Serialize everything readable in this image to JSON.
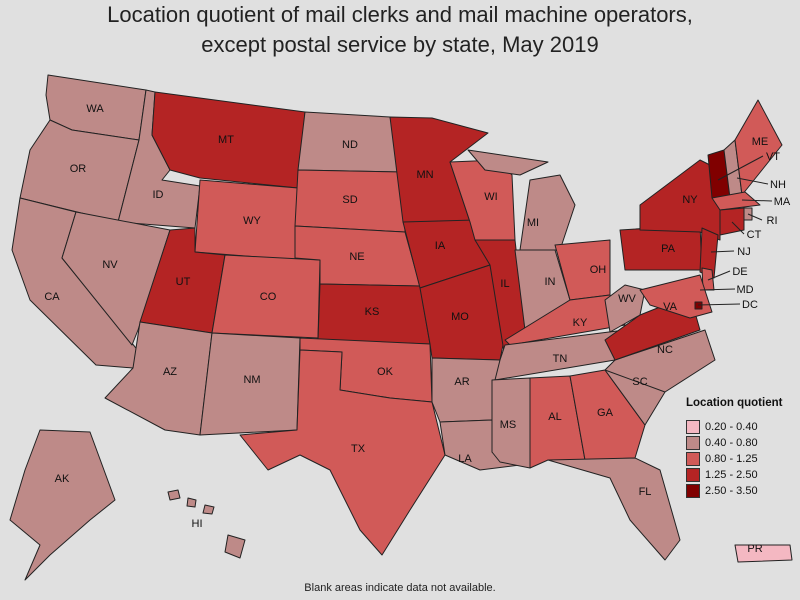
{
  "title_line1": "Location quotient of mail clerks and mail machine operators,",
  "title_line2": "except postal service by state, May 2019",
  "legend": {
    "title": "Location quotient",
    "bins": [
      {
        "label": "0.20 - 0.40",
        "color": "#f4b8c2"
      },
      {
        "label": "0.40 - 0.80",
        "color": "#be8a88"
      },
      {
        "label": "0.80 - 1.25",
        "color": "#d15a58"
      },
      {
        "label": "1.25 - 2.50",
        "color": "#b42424"
      },
      {
        "label": "2.50 - 3.50",
        "color": "#800000"
      }
    ]
  },
  "note": "Blank areas indicate data not available.",
  "states": {
    "WA": 1,
    "OR": 1,
    "CA": 1,
    "ID": 1,
    "NV": 1,
    "AZ": 1,
    "MT": 3,
    "WY": 2,
    "UT": 3,
    "CO": 2,
    "NM": 1,
    "ND": 1,
    "SD": 2,
    "NE": 2,
    "KS": 3,
    "OK": 2,
    "TX": 2,
    "MN": 3,
    "IA": 3,
    "MO": 3,
    "AR": 1,
    "LA": 1,
    "WI": 2,
    "IL": 3,
    "MI": 1,
    "IN": 1,
    "OH": 2,
    "KY": 2,
    "TN": 1,
    "MS": 1,
    "AL": 2,
    "GA": 2,
    "FL": 1,
    "SC": 1,
    "NC": 1,
    "VA": 3,
    "WV": 1,
    "PA": 3,
    "NY": 3,
    "ME": 2,
    "VT": 4,
    "NH": 1,
    "MA": 2,
    "RI": 1,
    "CT": 3,
    "NJ": 3,
    "DE": 2,
    "MD": 2,
    "DC": 4,
    "AK": 1,
    "HI": 1,
    "PR": 0
  },
  "callout_labels": [
    "VT",
    "NH",
    "MA",
    "RI",
    "CT",
    "NJ",
    "DE",
    "MD",
    "DC"
  ]
}
